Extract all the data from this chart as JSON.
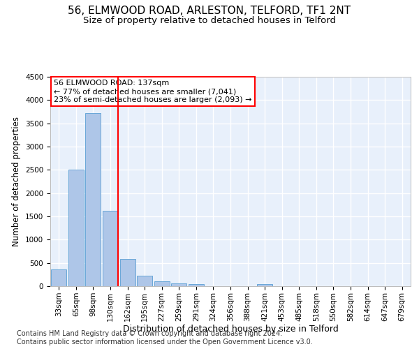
{
  "title": "56, ELMWOOD ROAD, ARLESTON, TELFORD, TF1 2NT",
  "subtitle": "Size of property relative to detached houses in Telford",
  "xlabel": "Distribution of detached houses by size in Telford",
  "ylabel": "Number of detached properties",
  "categories": [
    "33sqm",
    "65sqm",
    "98sqm",
    "130sqm",
    "162sqm",
    "195sqm",
    "227sqm",
    "259sqm",
    "291sqm",
    "324sqm",
    "356sqm",
    "388sqm",
    "421sqm",
    "453sqm",
    "485sqm",
    "518sqm",
    "550sqm",
    "582sqm",
    "614sqm",
    "647sqm",
    "679sqm"
  ],
  "values": [
    360,
    2500,
    3720,
    1620,
    590,
    220,
    110,
    60,
    45,
    0,
    0,
    0,
    50,
    0,
    0,
    0,
    0,
    0,
    0,
    0,
    0
  ],
  "bar_color": "#aec6e8",
  "bar_edge_color": "#5a9fd4",
  "vline_color": "red",
  "vline_x_index": 3,
  "annotation_text": "56 ELMWOOD ROAD: 137sqm\n← 77% of detached houses are smaller (7,041)\n23% of semi-detached houses are larger (2,093) →",
  "annotation_box_color": "white",
  "annotation_box_edge_color": "red",
  "ylim": [
    0,
    4500
  ],
  "yticks": [
    0,
    500,
    1000,
    1500,
    2000,
    2500,
    3000,
    3500,
    4000,
    4500
  ],
  "footer_text": "Contains HM Land Registry data © Crown copyright and database right 2024.\nContains public sector information licensed under the Open Government Licence v3.0.",
  "background_color": "#e8f0fb",
  "grid_color": "#ffffff",
  "title_fontsize": 11,
  "subtitle_fontsize": 9.5,
  "xlabel_fontsize": 9,
  "ylabel_fontsize": 8.5,
  "tick_fontsize": 7.5,
  "footer_fontsize": 7,
  "annotation_fontsize": 8
}
